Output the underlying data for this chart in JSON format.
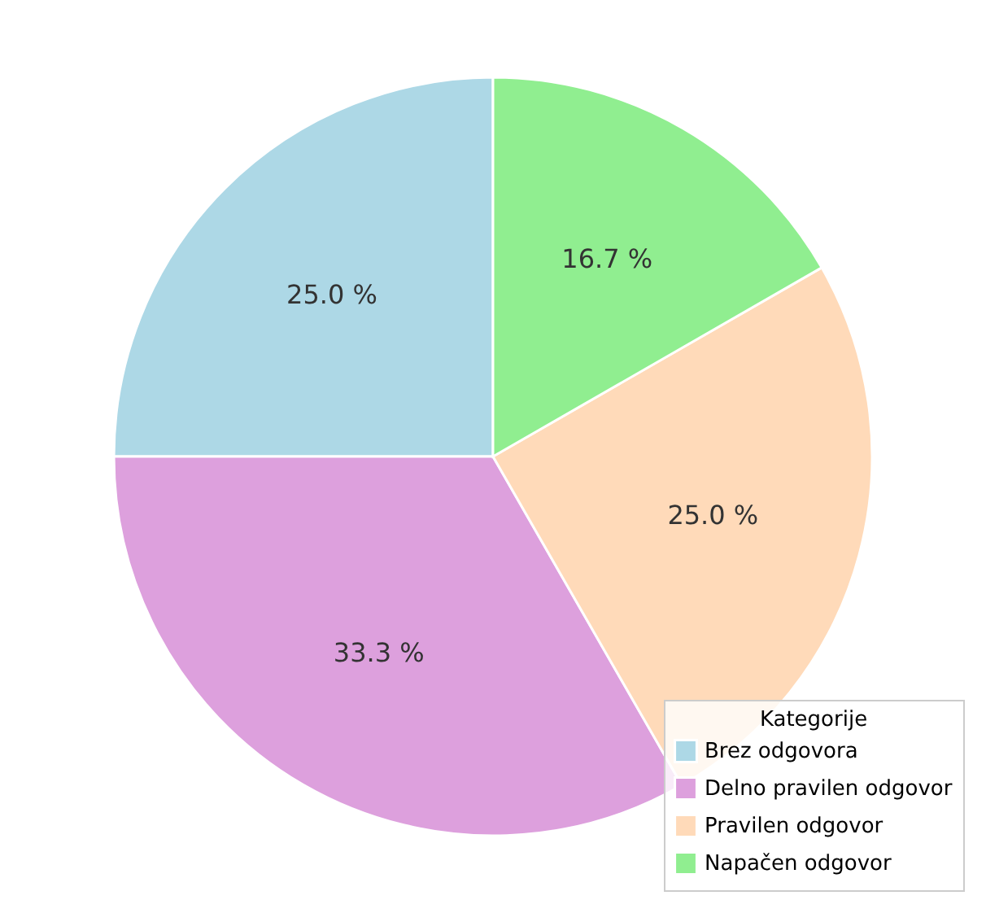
{
  "chart_data": {
    "type": "pie",
    "legend_title": "Kategorije",
    "legend": "bottom right",
    "categories": [
      "Brez odgovora",
      "Delno pravilen odgovor",
      "Pravilen odgovor",
      "Napačen odgovor"
    ],
    "values": [
      25,
      33.3,
      25,
      16.7
    ],
    "colors": [
      "#add8e6",
      "#dda0dd",
      "#ffdab9",
      "#90ee90"
    ],
    "value_labels": [
      "25.0 %",
      "33.3 %",
      "25.0 %",
      "16.7 %"
    ]
  }
}
